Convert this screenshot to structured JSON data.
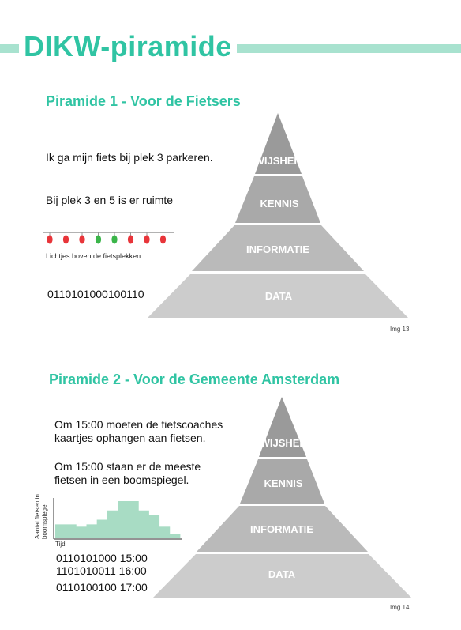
{
  "page": {
    "title": "DIKW-piramide"
  },
  "pyramid1": {
    "heading": "Piramide 1 - Voor de Fietsers",
    "levels": [
      "WIJSHEID",
      "KENNIS",
      "INFORMATIE",
      "DATA"
    ],
    "wisdom_text": "Ik ga mijn fiets bij plek 3 parkeren.",
    "knowledge_text": "Bij plek 3 en 5 is er ruimte",
    "lights_caption": "Lichtjes boven de fietsplekken",
    "lights": [
      "red",
      "red",
      "red",
      "green",
      "green",
      "red",
      "red",
      "red"
    ],
    "data_text": "0110101000100110",
    "img_caption": "Img 13"
  },
  "pyramid2": {
    "heading": "Piramide 2 - Voor de Gemeente Amsterdam",
    "levels": [
      "WIJSHEID",
      "KENNIS",
      "INFORMATIE",
      "DATA"
    ],
    "wisdom_line1": "Om 15:00 moeten de fietscoaches",
    "wisdom_line2": "kaartjes ophangen aan fietsen.",
    "knowledge_line1": "Om 15:00 staan er de meeste",
    "knowledge_line2": "fietsen in een boomspiegel.",
    "chart_ylabel_line1": "Aantal fietsen in",
    "chart_ylabel_line2": "boomspiegel",
    "chart_xlabel": "Tijd",
    "data_lines": [
      "0110101000 15:00",
      "1101010011 16:00",
      "0110100100 17:00"
    ],
    "img_caption": "Img 14"
  },
  "colors": {
    "accent": "#30c4a3",
    "accent_light": "#a8e2cf",
    "tier_top": "#9a9a9a",
    "tier_2": "#a9a9a9",
    "tier_3": "#bababa",
    "tier_bottom": "#cccccc",
    "light_red": "#e8353a",
    "light_green": "#3bb54a",
    "chart_fill": "#a8dcc4"
  },
  "chart_data": {
    "type": "area",
    "xlabel": "Tijd",
    "ylabel": "Aantal fietsen in boomspiegel",
    "values": [
      3,
      3,
      2.5,
      3,
      4,
      6,
      8,
      8,
      6,
      5,
      2.5,
      1
    ]
  }
}
